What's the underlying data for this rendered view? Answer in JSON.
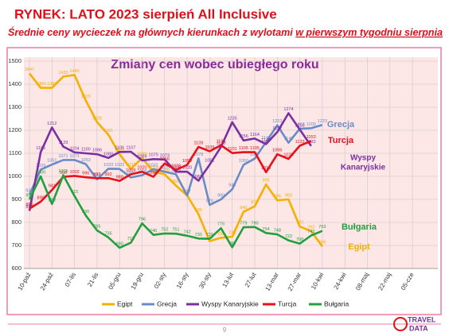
{
  "chart_data": {
    "type": "line",
    "title": "RYNEK: LATO 2023 sierpień All Inclusive",
    "subtitle": "Średnie ceny wycieczek na głównych kierunkach z wylotami ",
    "subtitle_underlined": "w pierwszym tygodniu sierpnia",
    "inner_title": "Zmiany cen wobec ubiegłego roku",
    "page_number": "9",
    "logo": [
      "TRAVEL",
      "DATA"
    ],
    "categories": [
      "10-paź",
      null,
      "24-paź",
      null,
      "07-lis",
      null,
      "21-lis",
      null,
      "05-gru",
      null,
      "19-gru",
      null,
      "02-sty",
      null,
      "16-sty",
      null,
      "30-sty",
      null,
      "13-lut",
      null,
      "27-lut",
      null,
      "13-mar",
      null,
      "27-mar",
      null,
      "10-kwi",
      null,
      "24-kwi",
      null,
      "08-maj",
      null,
      "22-maj",
      null,
      "05-cze"
    ],
    "ylim": [
      600,
      1500
    ],
    "yticks": [
      600,
      700,
      800,
      900,
      1000,
      1100,
      1200,
      1300,
      1400,
      1500
    ],
    "grid": true,
    "series": [
      {
        "name": "Egipt",
        "color": "#f5b000",
        "values": [
          1447,
          1384,
          1384,
          1433,
          1440,
          1329,
          1235,
          1181,
          1096,
          1032,
          1080,
          1020,
          1009,
          960,
          917,
          836,
          719,
          733,
          738,
          846,
          870,
          965,
          896,
          900,
          782,
          762,
          696,
          null,
          null,
          null,
          null,
          null,
          null,
          null,
          null
        ]
      },
      {
        "name": "Grecja",
        "color": "#6a8cc6",
        "values": [
          920,
          1029,
          1051,
          1071,
          1071,
          1053,
          987,
          1033,
          1032,
          995,
          1005,
          1031,
          1020,
          1009,
          917,
          1078,
          876,
          900,
          944,
          1050,
          1077,
          1149,
          1222,
          1146,
          1207,
          1209,
          1223,
          null,
          null,
          null,
          null,
          null,
          null,
          null,
          null
        ]
      },
      {
        "name": "Wyspy Kanaryjskie",
        "color": "#7a30a0",
        "values": [
          850,
          1105,
          1212,
          1129,
          1104,
          1100,
          1096,
          1080,
          1106,
          1107,
          1069,
          1075,
          1073,
          1020,
          1020,
          981,
          1051,
          1128,
          1235,
          1156,
          1164,
          1140,
          1192,
          1274,
          1203,
          1132,
          null,
          null,
          null,
          null,
          null,
          null,
          null,
          null,
          null
        ]
      },
      {
        "name": "Turcja",
        "color": "#e8101a",
        "values": [
          860,
          890,
          941,
          998,
          1002,
          996,
          992,
          992,
          980,
          1009,
          1020,
          998,
          1056,
          1028,
          1050,
          1128,
          1109,
          1135,
          1101,
          1105,
          1105,
          1018,
          1096,
          1076,
          1133,
          1153,
          null,
          null,
          null,
          null,
          null,
          null,
          null,
          null,
          null
        ]
      },
      {
        "name": "Bułgaria",
        "color": "#22a040",
        "values": [
          900,
          1000,
          880,
          1005,
          915,
          830,
          765,
          735,
          690,
          712,
          796,
          746,
          752,
          751,
          742,
          730,
          729,
          775,
          692,
          779,
          780,
          754,
          748,
          722,
          708,
          743,
          763,
          null,
          null,
          null,
          null,
          null,
          null,
          null,
          null
        ]
      }
    ],
    "annotations": [
      {
        "text": "Grecja",
        "color": "#6a8cc6"
      },
      {
        "text": "Turcja",
        "color": "#e8101a"
      },
      {
        "text": "Wyspy",
        "color": "#7a30a0"
      },
      {
        "text": "Kanaryjskie",
        "color": "#7a30a0"
      },
      {
        "text": "Bułgaria",
        "color": "#22a040"
      },
      {
        "text": "Egipt",
        "color": "#f5b000"
      }
    ]
  }
}
